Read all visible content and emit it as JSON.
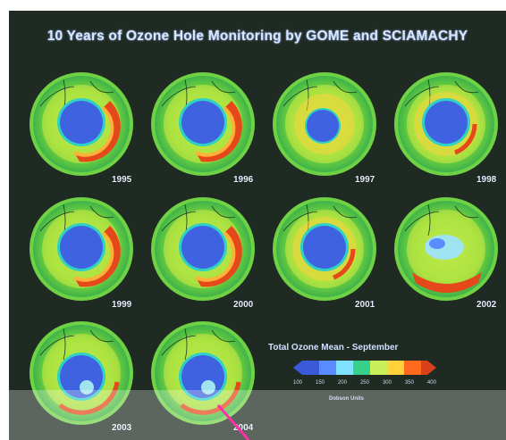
{
  "title": "10 Years of Ozone Hole Monitoring by GOME and SCIAMACHY",
  "legend": {
    "title": "Total Ozone Mean - September",
    "ticks": [
      "100",
      "150",
      "200",
      "250",
      "300",
      "350",
      "400"
    ],
    "units": "Dobson Units",
    "colors": [
      "#3a5ad8",
      "#5a8cff",
      "#7fe0ff",
      "#37d08a",
      "#c8f05a",
      "#ffd23a",
      "#ff6a1e",
      "#d8401c"
    ]
  },
  "panels": [
    {
      "year": "1995",
      "style": "ring"
    },
    {
      "year": "1996",
      "style": "ring"
    },
    {
      "year": "1997",
      "style": "small"
    },
    {
      "year": "1998",
      "style": "round"
    },
    {
      "year": "1999",
      "style": "ring"
    },
    {
      "year": "2000",
      "style": "ring"
    },
    {
      "year": "2001",
      "style": "round"
    },
    {
      "year": "2002",
      "style": "split"
    },
    {
      "year": "2003",
      "style": "pole"
    },
    {
      "year": "2004",
      "style": "pole"
    }
  ],
  "colors": {
    "background": "#1f2a22",
    "hole": "#3f63e0",
    "hole_edge": "#2fd1c6",
    "ozone_high": "#e5481a",
    "ozone_mid": "#ffd23a",
    "ozone_low": "#7ee84a",
    "pointer": "#ff2fa6"
  }
}
